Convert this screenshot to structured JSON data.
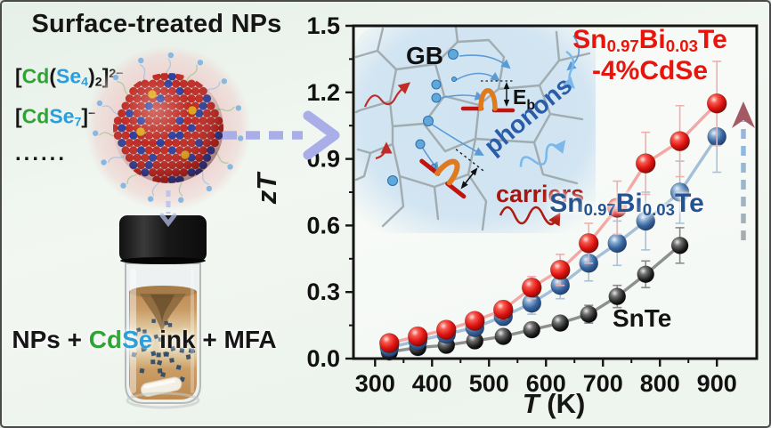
{
  "palette": {
    "accent_green": "#2fa336",
    "accent_blue": "#2a9fdb",
    "series_red": "#e8150d",
    "series_navy": "#24538f",
    "series_black": "#161616",
    "lavender_arrow": "#a9aee8",
    "inset_bg": "#cfe3f2"
  },
  "left_panel": {
    "title": "Surface-treated NPs",
    "formula_lines": [
      {
        "segments": [
          {
            "t": "["
          },
          {
            "t": "Cd",
            "c": "#2fa336"
          },
          {
            "t": "("
          },
          {
            "t": "Se",
            "c": "#2a9fdb"
          },
          {
            "t": "4",
            "v": "sub",
            "c": "#2a9fdb"
          },
          {
            "t": ")"
          },
          {
            "t": "2",
            "v": "sub"
          },
          {
            "t": "]"
          },
          {
            "t": "2−",
            "v": "sup"
          }
        ]
      },
      {
        "segments": [
          {
            "t": "["
          },
          {
            "t": "Cd",
            "c": "#2fa336"
          },
          {
            "t": "Se",
            "c": "#2a9fdb"
          },
          {
            "t": "7",
            "v": "sub",
            "c": "#2a9fdb"
          },
          {
            "t": "]"
          },
          {
            "t": "−",
            "v": "sup"
          }
        ]
      },
      {
        "segments": [
          {
            "t": "......"
          }
        ]
      }
    ],
    "mixture_label": {
      "segments": [
        {
          "t": "NPs + "
        },
        {
          "t": "Cd",
          "c": "#2fa336"
        },
        {
          "t": "Se",
          "c": "#2a9fdb"
        },
        {
          "t": " ink + MFA"
        }
      ]
    }
  },
  "chart": {
    "ylabel_segments": [
      {
        "t": "z",
        "i": true
      },
      {
        "t": "T",
        "i": true
      }
    ],
    "xlabel_segments": [
      {
        "t": "T",
        "i": true
      },
      {
        "t": " (K)"
      }
    ],
    "labels": {
      "cdse_line1": [
        {
          "t": "Sn"
        },
        {
          "t": "0.97",
          "v": "sub"
        },
        {
          "t": "Bi"
        },
        {
          "t": "0.03",
          "v": "sub"
        },
        {
          "t": "Te"
        }
      ],
      "cdse_line2": [
        {
          "t": "-4%CdSe"
        }
      ],
      "bi": [
        {
          "t": "Sn"
        },
        {
          "t": "0.97",
          "v": "sub"
        },
        {
          "t": "Bi"
        },
        {
          "t": "0.03",
          "v": "sub"
        },
        {
          "t": "Te"
        }
      ],
      "snte": [
        {
          "t": "SnTe"
        }
      ]
    },
    "inset": {
      "gb": "GB",
      "eb_main": "E",
      "eb_sub": "b",
      "phonons": "phonons",
      "carriers": "carriers"
    }
  },
  "chart_data": {
    "type": "line",
    "title": "",
    "xlabel": "T (K)",
    "ylabel": "zT",
    "xlim": [
      262,
      970
    ],
    "ylim": [
      0,
      1.5
    ],
    "x_ticks": [
      300,
      400,
      500,
      600,
      700,
      800,
      900
    ],
    "y_ticks": [
      "0.0",
      "0.3",
      "0.6",
      "0.9",
      "1.2",
      "1.5"
    ],
    "grid": false,
    "legend_position": "inline-labels",
    "series": [
      {
        "name": "SnTe",
        "color": "#161616",
        "line_color": "#8f8f8f",
        "error_color": "#8a8a8a",
        "x": [
          325,
          375,
          425,
          475,
          525,
          575,
          625,
          675,
          725,
          775,
          835
        ],
        "y": [
          0.03,
          0.05,
          0.06,
          0.08,
          0.1,
          0.13,
          0.16,
          0.2,
          0.28,
          0.38,
          0.51
        ],
        "err": [
          0.01,
          0.01,
          0.02,
          0.02,
          0.02,
          0.03,
          0.03,
          0.04,
          0.05,
          0.06,
          0.08
        ]
      },
      {
        "name": "Sn0.97Bi0.03Te",
        "color": "#2f5d9e",
        "line_color": "#a4bfd6",
        "error_color": "#a9c2d8",
        "x": [
          325,
          375,
          425,
          475,
          525,
          575,
          625,
          675,
          725,
          775,
          835,
          900
        ],
        "y": [
          0.05,
          0.08,
          0.11,
          0.14,
          0.19,
          0.25,
          0.33,
          0.43,
          0.52,
          0.62,
          0.75,
          1.0
        ],
        "err": [
          0.02,
          0.02,
          0.03,
          0.03,
          0.04,
          0.05,
          0.06,
          0.08,
          0.1,
          0.13,
          0.14,
          0.16
        ]
      },
      {
        "name": "Sn0.97Bi0.03Te-4%CdSe",
        "color": "#ea1917",
        "line_color": "#f4a7a4",
        "error_color": "#f0aeac",
        "x": [
          325,
          375,
          425,
          475,
          525,
          575,
          625,
          675,
          725,
          775,
          835,
          900
        ],
        "y": [
          0.07,
          0.1,
          0.13,
          0.17,
          0.22,
          0.32,
          0.4,
          0.52,
          0.68,
          0.88,
          0.98,
          1.15
        ],
        "err": [
          0.02,
          0.02,
          0.03,
          0.03,
          0.04,
          0.05,
          0.07,
          0.09,
          0.12,
          0.14,
          0.16,
          0.19
        ]
      }
    ]
  }
}
